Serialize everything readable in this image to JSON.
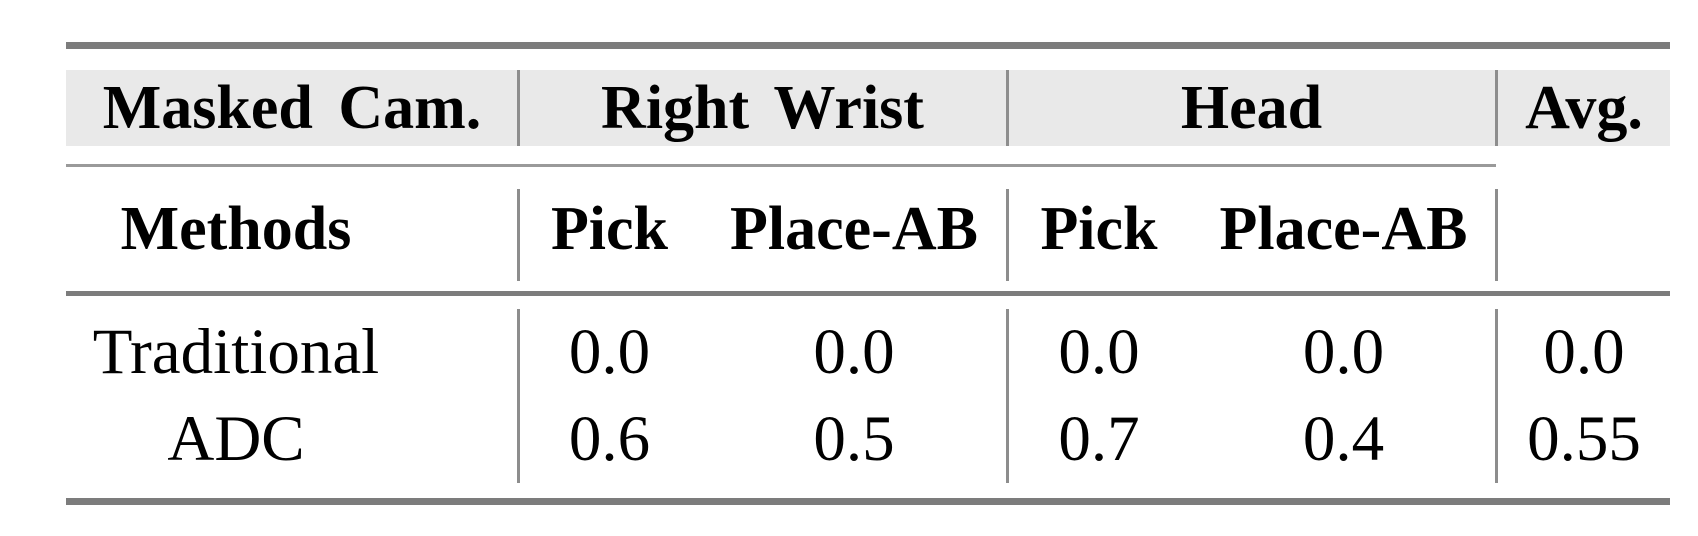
{
  "table": {
    "top_header": {
      "masked_cam": "Masked Cam.",
      "right_wrist": "Right Wrist",
      "head": "Head",
      "avg": "Avg."
    },
    "sub_header": {
      "methods": "Methods",
      "rw_pick": "Pick",
      "rw_place": "Place-AB",
      "head_pick": "Pick",
      "head_place": "Place-AB"
    },
    "rows": [
      {
        "method": "Traditional",
        "rw_pick": "0.0",
        "rw_place": "0.0",
        "head_pick": "0.0",
        "head_place": "0.0",
        "avg": "0.0"
      },
      {
        "method": "ADC",
        "rw_pick": "0.6",
        "rw_place": "0.5",
        "head_pick": "0.7",
        "head_place": "0.4",
        "avg": "0.55"
      }
    ],
    "colors": {
      "rule_heavy": "#7c7c7c",
      "rule_light": "#9a9a9a",
      "divider": "#8d8d8d",
      "header_band": "#e9e9e9",
      "text": "#000000",
      "background": "#ffffff"
    }
  },
  "chart_data": {
    "type": "table",
    "title": "",
    "column_groups": [
      "Masked Cam.",
      "Right Wrist",
      "Head",
      "Avg."
    ],
    "columns": [
      "Methods",
      "Right Wrist Pick",
      "Right Wrist Place-AB",
      "Head Pick",
      "Head Place-AB",
      "Avg."
    ],
    "rows": [
      [
        "Traditional",
        0.0,
        0.0,
        0.0,
        0.0,
        0.0
      ],
      [
        "ADC",
        0.6,
        0.5,
        0.7,
        0.4,
        0.55
      ]
    ]
  }
}
